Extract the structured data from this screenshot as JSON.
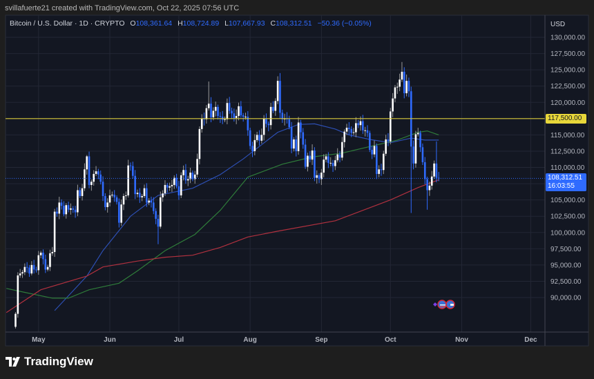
{
  "header": {
    "credit": "svillafuerte21 created with TradingView.com, Oct 22, 2025 07:56 UTC"
  },
  "legend": {
    "symbol": "Bitcoin / U.S. Dollar · 1D · CRYPTO",
    "open_label": "O",
    "open": "108,361.64",
    "high_label": "H",
    "high": "108,724.89",
    "low_label": "L",
    "low": "107,667.93",
    "close_label": "C",
    "close": "108,312.51",
    "change": "−50.36 (−0.05%)"
  },
  "price_axis": {
    "currency": "USD",
    "ticks": [
      130000,
      127500,
      125000,
      122500,
      120000,
      117500,
      115000,
      112500,
      110000,
      107500,
      105000,
      102500,
      100000,
      97500,
      95000,
      92500,
      90000
    ],
    "tick_labels": [
      "130,000.00",
      "127,500.00",
      "125,000.00",
      "122,500.00",
      "120,000.00",
      "117,500.00",
      "115,000.00",
      "112,500.00",
      "110,000.00",
      "107,500.00",
      "105,000.00",
      "102,500.00",
      "100,000.00",
      "97,500.00",
      "95,000.00",
      "92,500.00",
      "90,000.00"
    ],
    "horizontal_line_label": "117,500.00",
    "current_price_label": "108,312.51",
    "countdown": "16:03:55"
  },
  "time_axis": {
    "ticks": [
      {
        "label": "May",
        "date": "2025-05-01"
      },
      {
        "label": "Jun",
        "date": "2025-06-01"
      },
      {
        "label": "Jul",
        "date": "2025-07-01"
      },
      {
        "label": "Aug",
        "date": "2025-08-01"
      },
      {
        "label": "Sep",
        "date": "2025-09-01"
      },
      {
        "label": "Oct",
        "date": "2025-10-01"
      },
      {
        "label": "Nov",
        "date": "2025-11-01"
      },
      {
        "label": "Dec",
        "date": "2025-12-01"
      }
    ]
  },
  "colors": {
    "up": "#ffffff",
    "down": "#2f6bff",
    "ma_blue": "#2d4fb3",
    "ma_green": "#2f7d3a",
    "ma_red": "#b2313f",
    "hline": "#d8c93a",
    "price_box": "#2f6bff",
    "background": "#131722",
    "grid": "#232735"
  },
  "icons": {
    "events": "us-flag-icon",
    "logo": "tradingview-logo-icon"
  },
  "brand": "TradingView",
  "chart_data": {
    "type": "candlestick",
    "start_date": "2025-04-21",
    "ylim": [
      87500,
      132000
    ],
    "horizontal_line": 117500,
    "current_price": 108312.51,
    "first_open": 85500,
    "close": [
      87.5,
      93.4,
      93.7,
      93.9,
      94.7,
      94.6,
      93.7,
      95.0,
      94.3,
      94.2,
      96.5,
      96.9,
      95.9,
      94.3,
      94.7,
      96.8,
      97.0,
      103.2,
      102.9,
      104.6,
      104.1,
      102.8,
      104.2,
      103.5,
      103.7,
      103.5,
      103.1,
      106.5,
      105.6,
      106.8,
      109.7,
      111.7,
      107.3,
      107.8,
      109.0,
      109.4,
      108.9,
      107.8,
      105.6,
      103.9,
      104.6,
      105.7,
      105.8,
      105.4,
      104.7,
      101.5,
      104.3,
      105.6,
      105.7,
      110.3,
      110.2,
      108.7,
      105.9,
      106.1,
      105.4,
      105.6,
      106.8,
      104.6,
      104.9,
      104.6,
      103.3,
      102.1,
      100.9,
      105.4,
      106.0,
      107.3,
      106.9,
      107.1,
      107.3,
      108.4,
      107.1,
      105.7,
      108.8,
      109.6,
      108.0,
      108.2,
      109.2,
      108.2,
      108.9,
      111.3,
      115.9,
      117.5,
      117.4,
      119.1,
      119.8,
      117.7,
      118.7,
      119.3,
      117.9,
      117.8,
      117.3,
      117.4,
      119.9,
      118.7,
      118.3,
      117.6,
      117.9,
      119.4,
      118.0,
      117.8,
      117.8,
      115.7,
      113.3,
      112.5,
      114.2,
      115.0,
      114.1,
      115.0,
      117.5,
      116.7,
      116.5,
      119.3,
      118.7,
      120.2,
      123.3,
      118.4,
      117.4,
      117.5,
      117.4,
      116.2,
      112.9,
      114.3,
      112.5,
      116.9,
      115.4,
      113.5,
      110.1,
      111.8,
      111.2,
      112.6,
      108.4,
      108.8,
      108.2,
      109.2,
      111.2,
      111.7,
      110.7,
      110.7,
      110.2,
      111.1,
      112.0,
      111.5,
      113.9,
      115.5,
      116.1,
      115.9,
      115.3,
      115.4,
      116.8,
      116.5,
      117.1,
      115.7,
      115.7,
      115.3,
      112.7,
      112.0,
      113.3,
      109.0,
      109.7,
      109.6,
      112.1,
      114.3,
      114.0,
      118.6,
      120.6,
      122.3,
      122.4,
      123.5,
      124.7,
      121.4,
      123.3,
      121.7,
      113.2,
      110.6,
      115.1,
      115.3,
      113.1,
      110.8,
      108.2,
      106.5,
      107.2,
      108.6,
      110.6,
      108.4,
      108.3
    ],
    "close_unit": "thousand USD",
    "notable_extremes": [
      {
        "date": "2025-05-22",
        "high": 111.9
      },
      {
        "date": "2025-06-22",
        "low": 98.2
      },
      {
        "date": "2025-07-14",
        "high": 123.2
      },
      {
        "date": "2025-08-14",
        "high": 124.5
      },
      {
        "date": "2025-09-01",
        "low": 107.3
      },
      {
        "date": "2025-10-06",
        "high": 126.2
      },
      {
        "date": "2025-10-10",
        "low": 103.0
      },
      {
        "date": "2025-10-17",
        "low": 103.5
      },
      {
        "date": "2025-10-21",
        "high": 114.0
      }
    ],
    "moving_averages": [
      {
        "color": "ma_blue",
        "points": [
          [
            "2025-05-08",
            88.0
          ],
          [
            "2025-05-22",
            93.3
          ],
          [
            "2025-05-29",
            97.2
          ],
          [
            "2025-06-10",
            102.5
          ],
          [
            "2025-06-22",
            105.7
          ],
          [
            "2025-07-07",
            106.8
          ],
          [
            "2025-07-19",
            108.9
          ],
          [
            "2025-07-29",
            111.3
          ],
          [
            "2025-08-13",
            115.4
          ],
          [
            "2025-08-22",
            116.6
          ],
          [
            "2025-08-29",
            116.7
          ],
          [
            "2025-09-07",
            115.9
          ],
          [
            "2025-09-13",
            115.0
          ],
          [
            "2025-09-22",
            114.3
          ],
          [
            "2025-10-01",
            113.8
          ],
          [
            "2025-10-10",
            114.5
          ],
          [
            "2025-10-16",
            114.2
          ],
          [
            "2025-10-22",
            114.2
          ]
        ]
      },
      {
        "color": "ma_green",
        "points": [
          [
            "2025-04-17",
            91.4
          ],
          [
            "2025-04-25",
            90.8
          ],
          [
            "2025-05-07",
            89.9
          ],
          [
            "2025-05-14",
            89.9
          ],
          [
            "2025-05-23",
            91.2
          ],
          [
            "2025-06-05",
            92.2
          ],
          [
            "2025-06-13",
            94.1
          ],
          [
            "2025-06-25",
            97.2
          ],
          [
            "2025-07-08",
            99.7
          ],
          [
            "2025-07-19",
            103.4
          ],
          [
            "2025-07-31",
            108.5
          ],
          [
            "2025-08-15",
            110.5
          ],
          [
            "2025-08-28",
            111.6
          ],
          [
            "2025-09-10",
            112.2
          ],
          [
            "2025-09-22",
            113.2
          ],
          [
            "2025-10-04",
            114.2
          ],
          [
            "2025-10-13",
            115.4
          ],
          [
            "2025-10-17",
            115.6
          ],
          [
            "2025-10-22",
            115.0
          ]
        ]
      },
      {
        "color": "ma_red",
        "points": [
          [
            "2025-04-17",
            87.7
          ],
          [
            "2025-05-02",
            91.2
          ],
          [
            "2025-05-22",
            93.3
          ],
          [
            "2025-05-29",
            94.7
          ],
          [
            "2025-06-13",
            95.6
          ],
          [
            "2025-06-25",
            96.2
          ],
          [
            "2025-07-07",
            96.5
          ],
          [
            "2025-07-19",
            97.7
          ],
          [
            "2025-07-31",
            99.3
          ],
          [
            "2025-08-13",
            100.2
          ],
          [
            "2025-09-07",
            101.8
          ],
          [
            "2025-10-01",
            105.0
          ],
          [
            "2025-10-13",
            106.9
          ],
          [
            "2025-10-22",
            108.1
          ]
        ]
      }
    ]
  }
}
